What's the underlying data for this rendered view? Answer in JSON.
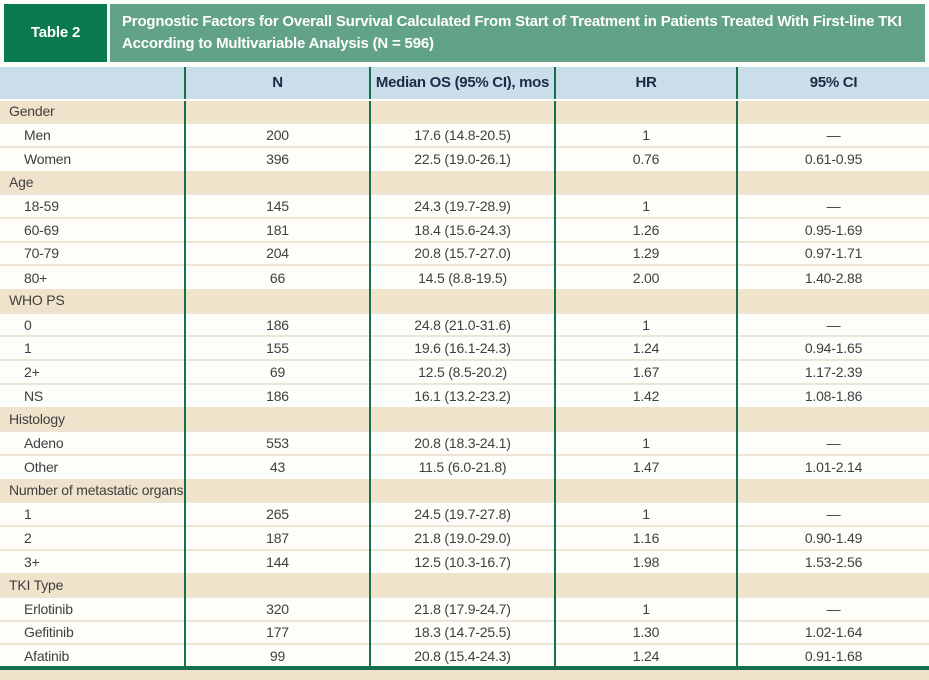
{
  "table": {
    "label": "Table 2",
    "title": "Prognostic Factors for Overall Survival Calculated From Start of Treatment in Patients Treated With First-line TKI According to Multivariable Analysis (N = 596)",
    "columns": [
      "",
      "N",
      "Median OS (95% CI), mos",
      "HR",
      "95% CI"
    ],
    "sections": [
      {
        "name": "Gender",
        "rows": [
          {
            "label": "Men",
            "n": "200",
            "os": "17.6 (14.8-20.5)",
            "hr": "1",
            "ci": "—"
          },
          {
            "label": "Women",
            "n": "396",
            "os": "22.5 (19.0-26.1)",
            "hr": "0.76",
            "ci": "0.61-0.95"
          }
        ]
      },
      {
        "name": "Age",
        "rows": [
          {
            "label": "18-59",
            "n": "145",
            "os": "24.3 (19.7-28.9)",
            "hr": "1",
            "ci": "—"
          },
          {
            "label": "60-69",
            "n": "181",
            "os": "18.4 (15.6-24.3)",
            "hr": "1.26",
            "ci": "0.95-1.69"
          },
          {
            "label": "70-79",
            "n": "204",
            "os": "20.8 (15.7-27.0)",
            "hr": "1.29",
            "ci": "0.97-1.71"
          },
          {
            "label": "80+",
            "n": "66",
            "os": "14.5 (8.8-19.5)",
            "hr": "2.00",
            "ci": "1.40-2.88"
          }
        ]
      },
      {
        "name": "WHO PS",
        "rows": [
          {
            "label": "0",
            "n": "186",
            "os": "24.8 (21.0-31.6)",
            "hr": "1",
            "ci": "—"
          },
          {
            "label": "1",
            "n": "155",
            "os": "19.6 (16.1-24.3)",
            "hr": "1.24",
            "ci": "0.94-1.65"
          },
          {
            "label": "2+",
            "n": "69",
            "os": "12.5 (8.5-20.2)",
            "hr": "1.67",
            "ci": "1.17-2.39"
          },
          {
            "label": "NS",
            "n": "186",
            "os": "16.1 (13.2-23.2)",
            "hr": "1.42",
            "ci": "1.08-1.86"
          }
        ]
      },
      {
        "name": "Histology",
        "rows": [
          {
            "label": "Adeno",
            "n": "553",
            "os": "20.8 (18.3-24.1)",
            "hr": "1",
            "ci": "—"
          },
          {
            "label": "Other",
            "n": "43",
            "os": "11.5 (6.0-21.8)",
            "hr": "1.47",
            "ci": "1.01-2.14"
          }
        ]
      },
      {
        "name": "Number of metastatic organs",
        "rows": [
          {
            "label": "1",
            "n": "265",
            "os": "24.5 (19.7-27.8)",
            "hr": "1",
            "ci": "—"
          },
          {
            "label": "2",
            "n": "187",
            "os": "21.8 (19.0-29.0)",
            "hr": "1.16",
            "ci": "0.90-1.49"
          },
          {
            "label": "3+",
            "n": "144",
            "os": "12.5 (10.3-16.7)",
            "hr": "1.98",
            "ci": "1.53-2.56"
          }
        ]
      },
      {
        "name": "TKI Type",
        "rows": [
          {
            "label": "Erlotinib",
            "n": "320",
            "os": "21.8 (17.9-24.7)",
            "hr": "1",
            "ci": "—"
          },
          {
            "label": "Gefitinib",
            "n": "177",
            "os": "18.3 (14.7-25.5)",
            "hr": "1.30",
            "ci": "1.02-1.64"
          },
          {
            "label": "Afatinib",
            "n": "99",
            "os": "20.8 (15.4-24.3)",
            "hr": "1.24",
            "ci": "0.91-1.68"
          }
        ]
      }
    ]
  },
  "colors": {
    "banner_green": "#62a287",
    "label_box_green": "#0c7a50",
    "header_blue": "#c9ddeb",
    "section_beige": "#f0e3cb",
    "divider_green": "#17704c",
    "row_separator": "#ece5d6",
    "header_text": "#1c2b45",
    "body_text": "#3f3f3f",
    "page_background": "#fdfdfb"
  }
}
